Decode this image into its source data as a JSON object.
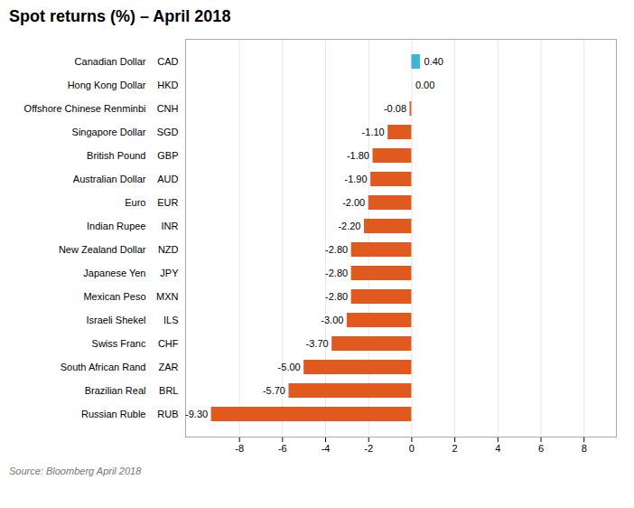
{
  "chart_data": {
    "type": "bar",
    "orientation": "horizontal",
    "title": "Spot returns (%) – April 2018",
    "caption": "Source: Bloomberg April 2018",
    "categories": [
      "Canadian Dollar",
      "Hong Kong Dollar",
      "Offshore Chinese Renminbi",
      "Singapore Dollar",
      "British Pound",
      "Australian Dollar",
      "Euro",
      "Indian Rupee",
      "New Zealand Dollar",
      "Japanese Yen",
      "Mexican Peso",
      "Israeli Shekel",
      "Swiss Franc",
      "South African Rand",
      "Brazilian Real",
      "Russian Ruble"
    ],
    "codes": [
      "CAD",
      "HKD",
      "CNH",
      "SGD",
      "GBP",
      "AUD",
      "EUR",
      "INR",
      "NZD",
      "JPY",
      "MXN",
      "ILS",
      "CHF",
      "ZAR",
      "BRL",
      "RUB"
    ],
    "values": [
      0.4,
      0.0,
      -0.08,
      -1.1,
      -1.8,
      -1.9,
      -2.0,
      -2.2,
      -2.8,
      -2.8,
      -2.8,
      -3.0,
      -3.7,
      -5.0,
      -5.7,
      -9.3
    ],
    "value_labels": [
      "0.40",
      "0.00",
      "-0.08",
      "-1.10",
      "-1.80",
      "-1.90",
      "-2.00",
      "-2.20",
      "-2.80",
      "-2.80",
      "-2.80",
      "-3.00",
      "-3.70",
      "-5.00",
      "-5.70",
      "-9.30"
    ],
    "colors": [
      "#3eb5d5",
      "#3eb5d5",
      "#e05a20",
      "#e05a20",
      "#e05a20",
      "#e05a20",
      "#e05a20",
      "#e05a20",
      "#e05a20",
      "#e05a20",
      "#e05a20",
      "#e05a20",
      "#e05a20",
      "#e05a20",
      "#e05a20",
      "#e05a20"
    ],
    "data_labels": true,
    "xlim": [
      -10.5,
      9.5
    ],
    "xticks": [
      -8,
      -6,
      -4,
      -2,
      0,
      2,
      4,
      6,
      8
    ],
    "grid": true
  }
}
